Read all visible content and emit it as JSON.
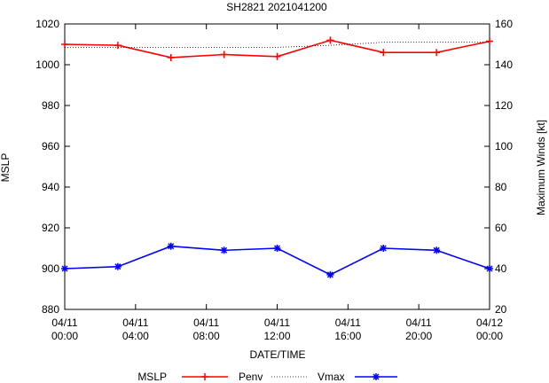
{
  "chart_data": {
    "type": "line",
    "title": "SH2821 2021041200",
    "xlabel": "DATE/TIME",
    "ylabel_left": "MSLP",
    "ylabel_right": "Maximum Winds [kt]",
    "y_left_range": [
      880,
      1020
    ],
    "y_right_range": [
      20,
      160
    ],
    "y_left_ticks": [
      "880",
      "900",
      "920",
      "940",
      "960",
      "980",
      "1000",
      "1020"
    ],
    "y_right_ticks": [
      "20",
      "40",
      "60",
      "80",
      "100",
      "120",
      "140",
      "160"
    ],
    "x_range_hours": [
      0,
      24
    ],
    "x_ticks": [
      {
        "hour": 0,
        "line1": "04/11",
        "line2": "00:00"
      },
      {
        "hour": 4,
        "line1": "04/11",
        "line2": "04:00"
      },
      {
        "hour": 8,
        "line1": "04/11",
        "line2": "08:00"
      },
      {
        "hour": 12,
        "line1": "04/11",
        "line2": "12:00"
      },
      {
        "hour": 16,
        "line1": "04/11",
        "line2": "16:00"
      },
      {
        "hour": 20,
        "line1": "04/11",
        "line2": "20:00"
      },
      {
        "hour": 24,
        "line1": "04/12",
        "line2": "00:00"
      }
    ],
    "x_hours": [
      0,
      3,
      6,
      9,
      12,
      15,
      18,
      21,
      24
    ],
    "series": [
      {
        "name": "MSLP",
        "axis": "left",
        "color": "#ff0000",
        "values": [],
        "marker": "plus"
      },
      {
        "name": "Penv",
        "axis": "left",
        "color": "#ff0000",
        "marker": "plus",
        "values": [
          1010,
          1009.5,
          1003.5,
          1005,
          1004,
          1012,
          1006,
          1006,
          1011.5
        ]
      },
      {
        "name": "",
        "axis": "left",
        "color": "#000000",
        "style": "dotted",
        "values": [
          1008.5,
          1008.5,
          1008.5,
          1008.5,
          1008.5,
          1009.5,
          1011,
          1011,
          1011
        ]
      },
      {
        "name": "Vmax",
        "axis": "right",
        "color": "#0000ff",
        "marker": "star",
        "values": [
          40,
          41,
          51,
          49,
          50,
          37,
          50,
          49,
          40
        ]
      }
    ],
    "legend": [
      {
        "label": "MSLP",
        "style": "none",
        "color": "#ff0000"
      },
      {
        "label": "Penv",
        "style": "line-plus",
        "color": "#ff0000"
      },
      {
        "label": "",
        "style": "dotted",
        "color": "#000000"
      },
      {
        "label": "Vmax",
        "style": "line-star",
        "color": "#0000ff"
      }
    ],
    "legend_position": "bottom",
    "grid": false
  }
}
